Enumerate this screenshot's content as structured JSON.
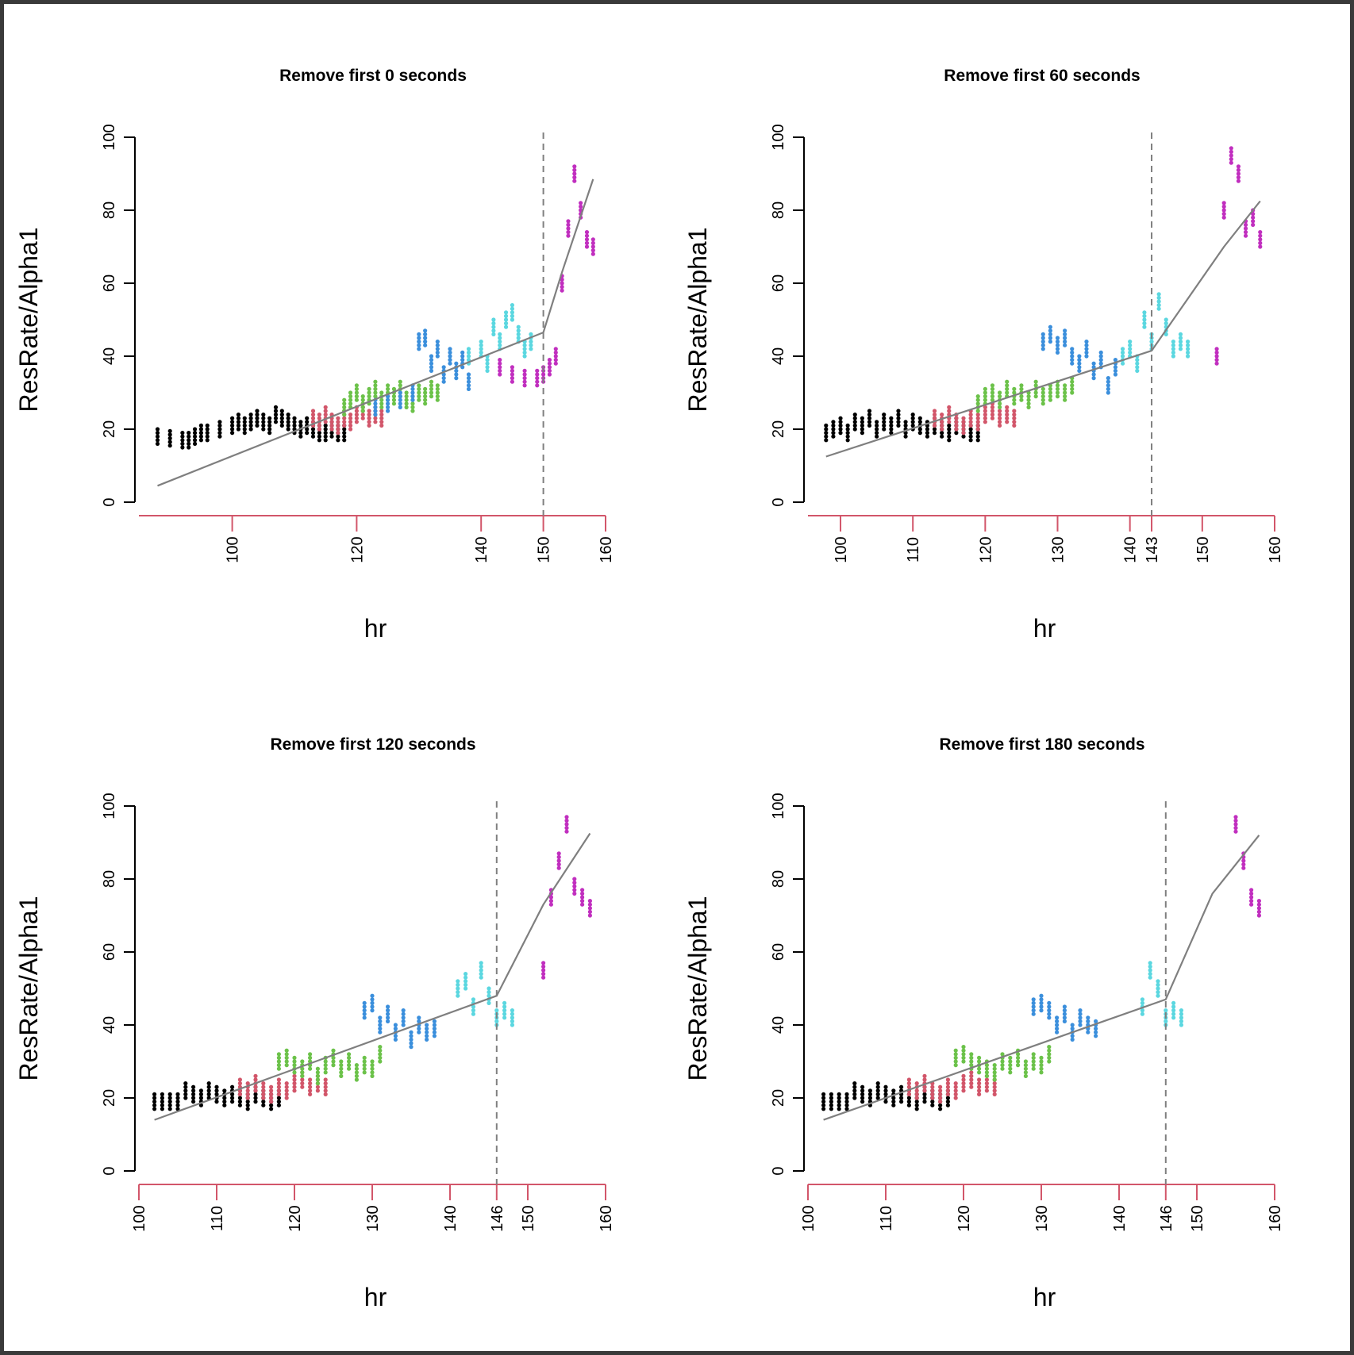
{
  "figure": {
    "colors": {
      "axis_x": "#d2566a",
      "axis_y": "#000000",
      "fit_line": "#7f7f7f",
      "threshold_line": "#7f7f7f",
      "series": [
        "#000000",
        "#d2566a",
        "#6cc24a",
        "#3b8fdc",
        "#5bd7e0",
        "#c12fbf"
      ]
    }
  },
  "chart_data": [
    {
      "type": "scatter",
      "title": "Remove first 0 seconds",
      "xlabel": "hr",
      "ylabel": "ResRate/Alpha1",
      "xlim": [
        85,
        160
      ],
      "ylim": [
        0,
        100
      ],
      "xticks": [
        100,
        120,
        140,
        150,
        160
      ],
      "yticks": [
        0,
        20,
        40,
        60,
        80,
        100
      ],
      "threshold": 150,
      "fit_line": [
        [
          88,
          4.5
        ],
        [
          150,
          46.5
        ],
        [
          153,
          63
        ],
        [
          158,
          88.5
        ]
      ],
      "series": [
        {
          "color_index": 0,
          "x": [
            88,
            90,
            92,
            93,
            94,
            95,
            96,
            98,
            100,
            101,
            102,
            103,
            104,
            105,
            106,
            107,
            108,
            109,
            110,
            111,
            112,
            113,
            114,
            115,
            116,
            117,
            118
          ],
          "y": [
            18,
            17.5,
            17,
            17,
            18,
            19,
            19,
            20,
            21,
            22,
            21,
            22,
            23,
            22,
            21,
            24,
            23,
            22,
            21,
            20,
            21,
            20,
            19,
            19,
            20,
            19,
            19
          ]
        },
        {
          "color_index": 1,
          "x": [
            113,
            114,
            115,
            116,
            117,
            118,
            119,
            120,
            121,
            122,
            123,
            124
          ],
          "y": [
            23,
            22,
            24,
            22,
            21,
            23,
            22,
            24,
            25,
            23,
            24,
            23
          ]
        },
        {
          "color_index": 2,
          "x": [
            118,
            119,
            120,
            121,
            122,
            123,
            124,
            125,
            126,
            127,
            128,
            129,
            130,
            131,
            132,
            133
          ],
          "y": [
            26,
            28,
            30,
            27,
            29,
            31,
            28,
            30,
            29,
            31,
            28,
            27,
            30,
            29,
            31,
            30
          ]
        },
        {
          "color_index": 3,
          "x": [
            123,
            125,
            127,
            129,
            130,
            131,
            132,
            133,
            134,
            135,
            136,
            137,
            138
          ],
          "y": [
            26,
            27,
            28,
            30,
            44,
            45,
            38,
            42,
            35,
            40,
            36,
            39,
            33
          ]
        },
        {
          "color_index": 4,
          "x": [
            138,
            140,
            141,
            142,
            143,
            144,
            145,
            146,
            147,
            148
          ],
          "y": [
            40,
            42,
            38,
            48,
            44,
            50,
            52,
            46,
            42,
            44
          ]
        },
        {
          "color_index": 5,
          "x": [
            143,
            145,
            147,
            149,
            150,
            151,
            152,
            153,
            154,
            155,
            156,
            157,
            158
          ],
          "y": [
            37,
            35,
            34,
            34,
            35,
            37,
            40,
            60,
            75,
            90,
            80,
            72,
            70
          ]
        }
      ]
    },
    {
      "type": "scatter",
      "title": "Remove first 60 seconds",
      "xlabel": "hr",
      "ylabel": "ResRate/Alpha1",
      "xlim": [
        95.5,
        160
      ],
      "ylim": [
        0,
        100
      ],
      "xticks": [
        100,
        110,
        120,
        130,
        140,
        143,
        150,
        160
      ],
      "yticks": [
        0,
        20,
        40,
        60,
        80,
        100
      ],
      "threshold": 143,
      "fit_line": [
        [
          98,
          12.5
        ],
        [
          143,
          41.5
        ],
        [
          153,
          70
        ],
        [
          158,
          82.5
        ]
      ],
      "series": [
        {
          "color_index": 0,
          "x": [
            98,
            99,
            100,
            101,
            102,
            103,
            104,
            105,
            106,
            107,
            108,
            109,
            110,
            111,
            112,
            113,
            114,
            115,
            116,
            117,
            118,
            119
          ],
          "y": [
            19,
            20,
            21,
            19,
            22,
            21,
            23,
            20,
            22,
            21,
            23,
            20,
            22,
            21,
            20,
            21,
            20,
            19,
            21,
            20,
            19,
            19
          ]
        },
        {
          "color_index": 1,
          "x": [
            113,
            114,
            115,
            116,
            117,
            118,
            119,
            120,
            121,
            122,
            123,
            124
          ],
          "y": [
            23,
            22,
            24,
            22,
            21,
            23,
            22,
            24,
            25,
            23,
            24,
            23
          ]
        },
        {
          "color_index": 2,
          "x": [
            119,
            120,
            121,
            122,
            123,
            124,
            125,
            126,
            127,
            128,
            129,
            130,
            131,
            132
          ],
          "y": [
            27,
            29,
            30,
            28,
            31,
            29,
            30,
            28,
            31,
            29,
            30,
            31,
            30,
            32
          ]
        },
        {
          "color_index": 3,
          "x": [
            128,
            129,
            130,
            131,
            132,
            133,
            134,
            135,
            136,
            137,
            138
          ],
          "y": [
            44,
            46,
            43,
            45,
            40,
            38,
            42,
            36,
            39,
            32,
            37
          ]
        },
        {
          "color_index": 4,
          "x": [
            139,
            140,
            141,
            142,
            143,
            144,
            145,
            146,
            147,
            148
          ],
          "y": [
            40,
            42,
            38,
            50,
            44,
            55,
            48,
            42,
            44,
            42
          ]
        },
        {
          "color_index": 5,
          "x": [
            152,
            153,
            154,
            155,
            156,
            157,
            158
          ],
          "y": [
            40,
            80,
            95,
            90,
            75,
            78,
            72
          ]
        }
      ]
    },
    {
      "type": "scatter",
      "title": "Remove first 120 seconds",
      "xlabel": "hr",
      "ylabel": "ResRate/Alpha1",
      "xlim": [
        100,
        160
      ],
      "ylim": [
        0,
        100
      ],
      "xticks": [
        100,
        110,
        120,
        130,
        140,
        146,
        150,
        160
      ],
      "yticks": [
        0,
        20,
        40,
        60,
        80,
        100
      ],
      "threshold": 146,
      "fit_line": [
        [
          102,
          14
        ],
        [
          146,
          48
        ],
        [
          152,
          73
        ],
        [
          158,
          92.5
        ]
      ],
      "series": [
        {
          "color_index": 0,
          "x": [
            102,
            103,
            104,
            105,
            106,
            107,
            108,
            109,
            110,
            111,
            112,
            113,
            114,
            115,
            116,
            117,
            118
          ],
          "y": [
            19,
            19,
            19,
            19,
            22,
            21,
            20,
            22,
            21,
            20,
            21,
            20,
            19,
            21,
            20,
            19,
            20
          ]
        },
        {
          "color_index": 1,
          "x": [
            113,
            114,
            115,
            116,
            117,
            118,
            119,
            120,
            121,
            122,
            123,
            124
          ],
          "y": [
            23,
            22,
            24,
            22,
            21,
            23,
            22,
            24,
            25,
            23,
            24,
            23
          ]
        },
        {
          "color_index": 2,
          "x": [
            118,
            119,
            120,
            121,
            122,
            123,
            124,
            125,
            126,
            127,
            128,
            129,
            130,
            131
          ],
          "y": [
            30,
            31,
            29,
            28,
            30,
            26,
            29,
            31,
            28,
            30,
            27,
            29,
            28,
            32
          ]
        },
        {
          "color_index": 3,
          "x": [
            129,
            130,
            131,
            132,
            133,
            134,
            135,
            136,
            137,
            138
          ],
          "y": [
            44,
            46,
            40,
            43,
            38,
            42,
            36,
            40,
            38,
            39
          ]
        },
        {
          "color_index": 4,
          "x": [
            141,
            142,
            143,
            144,
            145,
            146,
            147,
            148
          ],
          "y": [
            50,
            52,
            45,
            55,
            48,
            42,
            44,
            42
          ]
        },
        {
          "color_index": 5,
          "x": [
            152,
            153,
            154,
            155,
            156,
            157,
            158
          ],
          "y": [
            55,
            75,
            85,
            95,
            78,
            75,
            72
          ]
        }
      ]
    },
    {
      "type": "scatter",
      "title": "Remove first 180 seconds",
      "xlabel": "hr",
      "ylabel": "ResRate/Alpha1",
      "xlim": [
        100,
        160
      ],
      "ylim": [
        0,
        100
      ],
      "xticks": [
        100,
        110,
        120,
        130,
        140,
        146,
        150,
        160
      ],
      "yticks": [
        0,
        20,
        40,
        60,
        80,
        100
      ],
      "threshold": 146,
      "fit_line": [
        [
          102,
          14
        ],
        [
          146,
          47
        ],
        [
          152,
          76
        ],
        [
          158,
          92
        ]
      ],
      "series": [
        {
          "color_index": 0,
          "x": [
            102,
            103,
            104,
            105,
            106,
            107,
            108,
            109,
            110,
            111,
            112,
            113,
            114,
            115,
            116,
            117,
            118
          ],
          "y": [
            19,
            19,
            19,
            19,
            22,
            21,
            20,
            22,
            21,
            20,
            21,
            20,
            19,
            21,
            20,
            19,
            20
          ]
        },
        {
          "color_index": 1,
          "x": [
            113,
            114,
            115,
            116,
            117,
            118,
            119,
            120,
            121,
            122,
            123,
            124
          ],
          "y": [
            23,
            22,
            24,
            22,
            21,
            23,
            22,
            24,
            25,
            23,
            24,
            23
          ]
        },
        {
          "color_index": 2,
          "x": [
            119,
            120,
            121,
            122,
            123,
            124,
            125,
            126,
            127,
            128,
            129,
            130,
            131
          ],
          "y": [
            31,
            32,
            30,
            29,
            28,
            27,
            30,
            29,
            31,
            28,
            30,
            29,
            32
          ]
        },
        {
          "color_index": 3,
          "x": [
            129,
            130,
            131,
            132,
            133,
            134,
            135,
            136,
            137
          ],
          "y": [
            45,
            46,
            44,
            40,
            43,
            38,
            42,
            40,
            39
          ]
        },
        {
          "color_index": 4,
          "x": [
            143,
            144,
            145,
            146,
            147,
            148
          ],
          "y": [
            45,
            55,
            50,
            42,
            44,
            42
          ]
        },
        {
          "color_index": 5,
          "x": [
            155,
            156,
            157,
            158
          ],
          "y": [
            95,
            85,
            75,
            72
          ]
        }
      ]
    }
  ]
}
